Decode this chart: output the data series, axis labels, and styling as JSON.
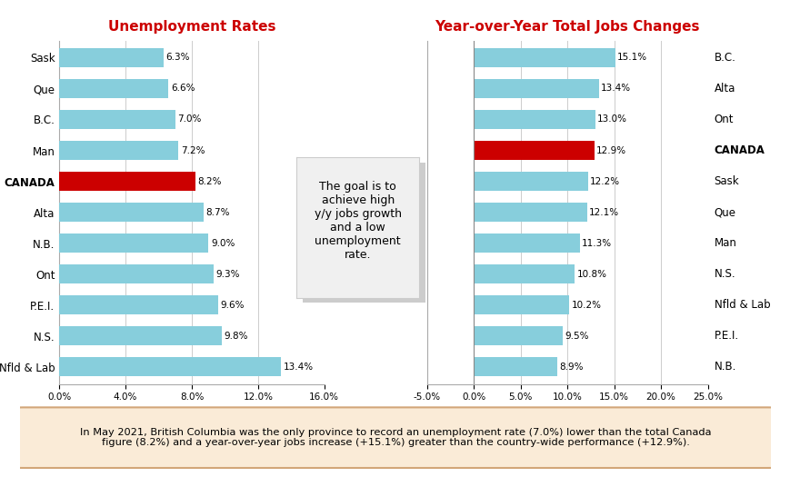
{
  "left_labels": [
    "Sask",
    "Que",
    "B.C.",
    "Man",
    "CANADA",
    "Alta",
    "N.B.",
    "Ont",
    "P.E.I.",
    "N.S.",
    "Nfld & Lab"
  ],
  "left_values": [
    6.3,
    6.6,
    7.0,
    7.2,
    8.2,
    8.7,
    9.0,
    9.3,
    9.6,
    9.8,
    13.4
  ],
  "left_colors": [
    "#87CEDC",
    "#87CEDC",
    "#87CEDC",
    "#87CEDC",
    "#CC0000",
    "#87CEDC",
    "#87CEDC",
    "#87CEDC",
    "#87CEDC",
    "#87CEDC",
    "#87CEDC"
  ],
  "right_labels": [
    "B.C.",
    "Alta",
    "Ont",
    "CANADA",
    "Sask",
    "Que",
    "Man",
    "N.S.",
    "Nfld & Lab",
    "P.E.I.",
    "N.B."
  ],
  "right_values": [
    15.1,
    13.4,
    13.0,
    12.9,
    12.2,
    12.1,
    11.3,
    10.8,
    10.2,
    9.5,
    8.9
  ],
  "right_colors": [
    "#87CEDC",
    "#87CEDC",
    "#87CEDC",
    "#CC0000",
    "#87CEDC",
    "#87CEDC",
    "#87CEDC",
    "#87CEDC",
    "#87CEDC",
    "#87CEDC",
    "#87CEDC"
  ],
  "left_title": "Unemployment Rates",
  "right_title": "Year-over-Year Total Jobs Changes",
  "title_color": "#CC0000",
  "left_xlim": [
    0,
    16
  ],
  "left_xticks": [
    0,
    4,
    8,
    12,
    16
  ],
  "left_xticklabels": [
    "0.0%",
    "4.0%",
    "8.0%",
    "12.0%",
    "16.0%"
  ],
  "right_xlim": [
    -5,
    25
  ],
  "right_xticks": [
    -5,
    0,
    5,
    10,
    15,
    20,
    25
  ],
  "right_xticklabels": [
    "-5.0%",
    "0.0%",
    "5.0%",
    "10.0%",
    "15.0%",
    "20.0%",
    "25.0%"
  ],
  "bar_height": 0.62,
  "bar_color_normal": "#87CEDC",
  "bar_color_canada": "#CC0000",
  "annotation_text": "The goal is to\nachieve high\ny/y jobs growth\nand a low\nunemployment\nrate.",
  "footer_text": "In May 2021, British Columbia was the only province to record an unemployment rate (7.0%) lower than the total Canada\nfigure (8.2%) and a year-over-year jobs increase (+15.1%) greater than the country-wide performance (+12.9%).",
  "footer_bg": "#FAEBD7",
  "footer_border": "#D2A679",
  "background_color": "#FFFFFF",
  "grid_color": "#CCCCCC",
  "ann_bg": "#F0F0F0",
  "ann_border": "#CCCCCC"
}
